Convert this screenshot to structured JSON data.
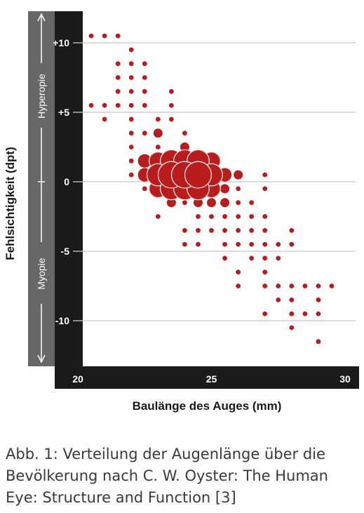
{
  "chart_data": {
    "type": "scatter",
    "xlabel": "Baulänge des Auges (mm)",
    "ylabel": "Fehlsichtigkeit (dpt)",
    "band_top_label": "Hyperopie",
    "band_bottom_label": "Myopie",
    "xlim": [
      20,
      30
    ],
    "ylim": [
      -13.2,
      12.2
    ],
    "x_ticks": [
      20,
      25,
      30
    ],
    "x_tick_labels": [
      "20",
      "25",
      "30"
    ],
    "y_ticks": [
      10,
      5,
      0,
      -5,
      -10
    ],
    "y_tick_labels": [
      "+10",
      "+5",
      "0",
      "-5",
      "-10"
    ],
    "grid": true,
    "marker_color": "#b81c1c",
    "axis_band_color": "#1a1a1a",
    "side_band_color": "#676767",
    "points": [
      {
        "x": 20.5,
        "y": 10.5,
        "w": 1
      },
      {
        "x": 21.0,
        "y": 10.5,
        "w": 1
      },
      {
        "x": 21.5,
        "y": 10.5,
        "w": 1
      },
      {
        "x": 22.0,
        "y": 9.5,
        "w": 1
      },
      {
        "x": 21.5,
        "y": 8.5,
        "w": 1
      },
      {
        "x": 22.0,
        "y": 8.5,
        "w": 1
      },
      {
        "x": 22.5,
        "y": 8.5,
        "w": 1
      },
      {
        "x": 21.5,
        "y": 7.5,
        "w": 1
      },
      {
        "x": 22.0,
        "y": 7.5,
        "w": 1
      },
      {
        "x": 22.5,
        "y": 7.5,
        "w": 1
      },
      {
        "x": 21.5,
        "y": 6.5,
        "w": 1
      },
      {
        "x": 22.0,
        "y": 6.5,
        "w": 1
      },
      {
        "x": 22.5,
        "y": 6.5,
        "w": 1
      },
      {
        "x": 23.5,
        "y": 6.5,
        "w": 1
      },
      {
        "x": 20.5,
        "y": 5.5,
        "w": 1
      },
      {
        "x": 21.0,
        "y": 5.5,
        "w": 1
      },
      {
        "x": 21.5,
        "y": 5.5,
        "w": 1
      },
      {
        "x": 22.0,
        "y": 5.5,
        "w": 1
      },
      {
        "x": 22.5,
        "y": 5.5,
        "w": 1
      },
      {
        "x": 23.5,
        "y": 5.5,
        "w": 1
      },
      {
        "x": 21.0,
        "y": 4.5,
        "w": 1
      },
      {
        "x": 22.0,
        "y": 4.5,
        "w": 1
      },
      {
        "x": 23.0,
        "y": 4.5,
        "w": 1
      },
      {
        "x": 23.5,
        "y": 4.5,
        "w": 1
      },
      {
        "x": 22.0,
        "y": 3.5,
        "w": 1
      },
      {
        "x": 22.5,
        "y": 3.5,
        "w": 1
      },
      {
        "x": 23.0,
        "y": 3.5,
        "w": 2
      },
      {
        "x": 24.0,
        "y": 3.5,
        "w": 1
      },
      {
        "x": 22.0,
        "y": 2.5,
        "w": 1
      },
      {
        "x": 23.0,
        "y": 2.5,
        "w": 1
      },
      {
        "x": 24.0,
        "y": 2.5,
        "w": 2
      },
      {
        "x": 22.0,
        "y": 1.5,
        "w": 1
      },
      {
        "x": 22.5,
        "y": 1.5,
        "w": 3
      },
      {
        "x": 23.0,
        "y": 1.5,
        "w": 4
      },
      {
        "x": 23.5,
        "y": 1.5,
        "w": 5
      },
      {
        "x": 24.0,
        "y": 1.5,
        "w": 5
      },
      {
        "x": 24.5,
        "y": 1.5,
        "w": 5
      },
      {
        "x": 25.0,
        "y": 1.5,
        "w": 4
      },
      {
        "x": 22.0,
        "y": 0.5,
        "w": 1
      },
      {
        "x": 22.5,
        "y": 0.5,
        "w": 3
      },
      {
        "x": 23.0,
        "y": 0.5,
        "w": 5
      },
      {
        "x": 23.5,
        "y": 0.5,
        "w": 6
      },
      {
        "x": 24.0,
        "y": 0.5,
        "w": 6
      },
      {
        "x": 24.5,
        "y": 0.5,
        "w": 6
      },
      {
        "x": 25.0,
        "y": 0.5,
        "w": 5
      },
      {
        "x": 25.5,
        "y": 0.5,
        "w": 3
      },
      {
        "x": 26.0,
        "y": 0.5,
        "w": 2
      },
      {
        "x": 27.0,
        "y": 0.5,
        "w": 1
      },
      {
        "x": 23.0,
        "y": -0.5,
        "w": 4
      },
      {
        "x": 23.5,
        "y": -0.5,
        "w": 5
      },
      {
        "x": 24.0,
        "y": -0.5,
        "w": 5
      },
      {
        "x": 24.5,
        "y": -0.5,
        "w": 5
      },
      {
        "x": 25.0,
        "y": -0.5,
        "w": 4
      },
      {
        "x": 25.5,
        "y": -0.5,
        "w": 2
      },
      {
        "x": 26.0,
        "y": -0.5,
        "w": 1
      },
      {
        "x": 27.0,
        "y": -0.5,
        "w": 1
      },
      {
        "x": 22.5,
        "y": -0.5,
        "w": 1
      },
      {
        "x": 23.5,
        "y": -1.5,
        "w": 2
      },
      {
        "x": 24.0,
        "y": -1.5,
        "w": 1
      },
      {
        "x": 24.5,
        "y": -1.5,
        "w": 2
      },
      {
        "x": 25.0,
        "y": -1.5,
        "w": 2
      },
      {
        "x": 25.5,
        "y": -1.5,
        "w": 2
      },
      {
        "x": 26.0,
        "y": -1.5,
        "w": 1
      },
      {
        "x": 26.5,
        "y": -1.5,
        "w": 1
      },
      {
        "x": 24.5,
        "y": -2.5,
        "w": 1
      },
      {
        "x": 25.0,
        "y": -2.5,
        "w": 1
      },
      {
        "x": 25.5,
        "y": -2.5,
        "w": 1
      },
      {
        "x": 26.0,
        "y": -2.5,
        "w": 1
      },
      {
        "x": 26.5,
        "y": -2.5,
        "w": 1
      },
      {
        "x": 27.0,
        "y": -2.5,
        "w": 1
      },
      {
        "x": 24.0,
        "y": -3.5,
        "w": 1
      },
      {
        "x": 24.5,
        "y": -3.5,
        "w": 1
      },
      {
        "x": 25.0,
        "y": -3.5,
        "w": 1
      },
      {
        "x": 25.5,
        "y": -3.5,
        "w": 1
      },
      {
        "x": 26.0,
        "y": -3.5,
        "w": 1
      },
      {
        "x": 26.5,
        "y": -3.5,
        "w": 1
      },
      {
        "x": 27.0,
        "y": -3.5,
        "w": 1
      },
      {
        "x": 28.0,
        "y": -3.5,
        "w": 1
      },
      {
        "x": 24.5,
        "y": -4.5,
        "w": 1
      },
      {
        "x": 25.5,
        "y": -4.5,
        "w": 1
      },
      {
        "x": 26.0,
        "y": -4.5,
        "w": 1
      },
      {
        "x": 26.5,
        "y": -4.5,
        "w": 1
      },
      {
        "x": 27.0,
        "y": -4.5,
        "w": 1
      },
      {
        "x": 27.5,
        "y": -4.5,
        "w": 1
      },
      {
        "x": 28.0,
        "y": -4.5,
        "w": 1
      },
      {
        "x": 23.0,
        "y": -2.5,
        "w": 1
      },
      {
        "x": 24.0,
        "y": -4.5,
        "w": 1
      },
      {
        "x": 25.5,
        "y": -5.5,
        "w": 1
      },
      {
        "x": 26.5,
        "y": -5.5,
        "w": 1
      },
      {
        "x": 27.0,
        "y": -5.5,
        "w": 1
      },
      {
        "x": 27.5,
        "y": -5.5,
        "w": 1
      },
      {
        "x": 26.0,
        "y": -6.5,
        "w": 1
      },
      {
        "x": 27.0,
        "y": -6.5,
        "w": 1
      },
      {
        "x": 26.0,
        "y": -7.5,
        "w": 1
      },
      {
        "x": 27.0,
        "y": -7.5,
        "w": 1
      },
      {
        "x": 27.5,
        "y": -7.5,
        "w": 1
      },
      {
        "x": 28.0,
        "y": -7.5,
        "w": 1
      },
      {
        "x": 28.5,
        "y": -7.5,
        "w": 1
      },
      {
        "x": 29.0,
        "y": -7.5,
        "w": 1
      },
      {
        "x": 29.5,
        "y": -7.5,
        "w": 1
      },
      {
        "x": 27.5,
        "y": -8.5,
        "w": 1
      },
      {
        "x": 28.0,
        "y": -8.5,
        "w": 1
      },
      {
        "x": 29.0,
        "y": -8.5,
        "w": 1
      },
      {
        "x": 27.0,
        "y": -9.5,
        "w": 1
      },
      {
        "x": 28.0,
        "y": -9.5,
        "w": 1
      },
      {
        "x": 28.5,
        "y": -9.5,
        "w": 1
      },
      {
        "x": 29.0,
        "y": -9.5,
        "w": 1
      },
      {
        "x": 28.0,
        "y": -10.5,
        "w": 1
      },
      {
        "x": 29.0,
        "y": -11.5,
        "w": 1
      }
    ]
  },
  "caption": "Abb. 1: Verteilung der Augenlänge über die Bevölkerung nach C. W. Oyster: The Human Eye: Structure and Function [3]"
}
